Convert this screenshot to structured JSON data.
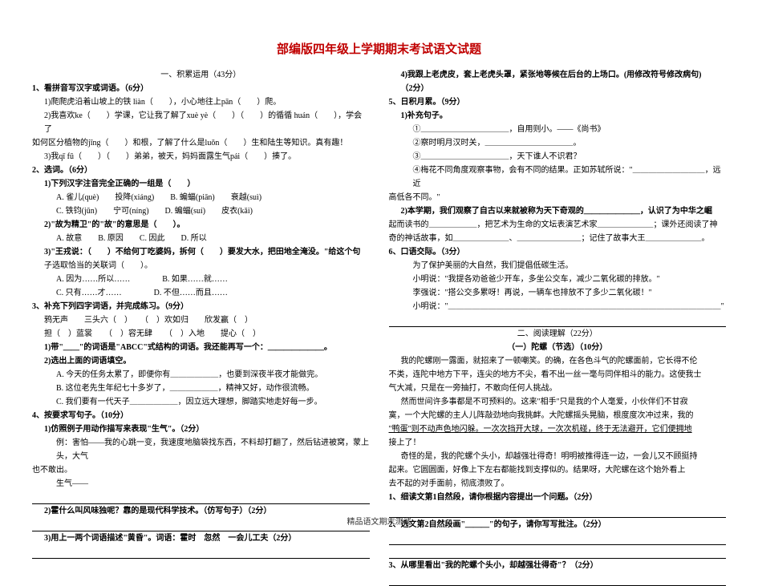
{
  "title": "部编版四年级上学期期末考试语文试题",
  "left": {
    "sectionA": "一、积累运用（43分）",
    "q1": "1、看拼音写汉字或词语。（6分）",
    "q1a": "1)爬爬虎沿着山坡上的铁 liàn（　　），小心地往上pān（　　）爬。",
    "q1b": "2)我喜欢ke（　　）学课，它让我了解了xuè yè（　　）（　　）的循循 huán（　　），学会了",
    "q1b2": "如何区分植物的jīng（　　）和根，了解了什么是luǒn（　　）生和陆生等知识。真有趣！",
    "q1c": "3)我qī fū（　　）（　　）弟弟，被天，妈妈面露生气pái（　　）揍了。",
    "q2": "2、选词。（6分）",
    "q2_1": "1)下列汉字注音完全正确的一组是（　　）",
    "q2_1a": "A. 雀儿(què)　　投降(xiáng)　　B. 蝙蝠(piān)　　衰越(suì)",
    "q2_1b": "C. 铁钧(jūn)　　宁可(níng)　　D. 蝙蝠(suí)　　皮衣(kǎi)",
    "q2_2": "2)\"故为精卫\"的\"故\"的意思是（　　）。",
    "q2_2opts": "A. 故意　　B. 原因　　C. 因此　　D. 所以",
    "q2_3": "3)\"王戎说：（　　）不给何丁吃婆妈，拆何（　　）要发大水，把田地全淹没。\"给这个句",
    "q2_3b": "子选取恰当的关联词（　　）。",
    "q2_3opts": "A. 因为……所以……　　　　B. 如果……就……",
    "q2_3opts2": "C. 只有……才……　　　　D. 不但……而且……",
    "q3": "3、补充下列四字词语，并完成练习。（9分）",
    "q3a": "鸦无声　　三头六（　）　　（　）欢如归　　欣发赢（　）",
    "q3b": "担（　）蓝裳　　（　）容无肆　　（　）入地　　提心（　）",
    "q3_1": "1)带\"＿＿\"的词语是\"ABCC\"式结构的词语。我还能再写一个：＿＿＿＿＿＿＿。",
    "q3_2": "2)选出上面的词语填空。",
    "q3_2a": "A. 今天的任务太累了，即便你有＿＿＿＿＿＿，也要到深夜半夜才能做完。",
    "q3_2b": "B. 这位老先生年纪七十多岁了，＿＿＿＿＿＿，精神又好，动作很流畅。",
    "q3_2c": "C. 我们要有一代天子＿＿＿＿＿＿，因立远大理想，脚踏实地走好每一步。",
    "q4": "4、按要求写句子。（10分）",
    "q4_1": "1)仿照例子用动作描写来表现\"生气\"。（2分）",
    "q4_1ex": "例：害怕——我的心跳一变，我速度地脑袋找东西，不料却打翻了，然后钻进被窝，蒙上头，大气",
    "q4_1ex2": "也不敢出。",
    "q4_1ans": "生气——",
    "q4_2": "2)霍什么叫风味独呢？靠的是现代科学技术。（仿写句子）（2分）",
    "q4_3": "3)用上一两个词语描述\"黄昏\"。词语：霍时　忽然　一会儿工夫（2分）"
  },
  "right": {
    "q4_4": "4)我跟上老虎皮，套上老虎头罩，紧张地等候在后台的上场口。(用修改符号修改病句)",
    "q4_4pts": "（2分）",
    "q5": "5、日积月累。（9分）",
    "q5_1": "1)补充句子。",
    "q5_1a": "①＿＿＿＿＿＿＿＿＿＿＿，自用则小。——《尚书》",
    "q5_1b": "②察时明月汉时关，＿＿＿＿＿＿＿＿＿＿＿。",
    "q5_1c": "③＿＿＿＿＿＿＿＿＿＿＿，天下谁人不识君？",
    "q5_1d": "④梅花不同角度观察事物，会有不同的结果。正如苏轼所说：\"＿＿＿＿＿＿＿＿＿，远近",
    "q5_1d2": "高低各不同。\"",
    "q5_2": "2)本学期，我们观察了自古以来就被称为天下奇观的＿＿＿＿＿＿＿，认识了为中华之崛",
    "q5_2b": "起而读书的＿＿＿＿＿＿，把艺术为生命的文坛表演艺术家＿＿＿＿＿＿＿；课外还阅读了神",
    "q5_2c": "奇的神话故事，如＿＿＿＿＿＿＿、＿＿＿＿＿＿＿＿；记住了故事大王＿＿＿＿＿＿＿。",
    "q6": "6、口语交际。（3分）",
    "q6a": "为了保护美丽的大自然，我们提倡低碳生活。",
    "q6b": "小明说：\"我提各劝爸爸少开车，多坐公交车，减少二氧化碳的排放。\"",
    "q6c": "李强说：\"搭公交多累呀！再说，一辆车也排放不了多少二氧化碳！\"",
    "q6d": "小明说：\"＿＿＿＿＿＿＿＿＿＿＿＿＿＿＿＿＿＿＿＿＿＿＿＿＿＿＿＿＿＿＿＿＿＿\"",
    "sectionB": "二、阅读理解（22分）",
    "passage": "（一）陀螺（节选）（10分）",
    "p1": "我的陀螺刚一露面，就招来了一顿嘲笑。的确，在各色斗气的陀螺面前，它长得不伦",
    "p1b": "不类，连陀中地方下平，连尖的地方不尖，看不出一丝一毫与同伴相斗的能力。这使我士",
    "p1c": "气大减，只是在一旁抽打，不敢向任何人挑战。",
    "p2": "然而世间许多事都是不可预料的。这来\"相手\"只是我的个人毫爱，小伙伴们不甘寂",
    "p2b": "寞，一个大陀螺的主人儿阵敲劲地向我挑衅。大陀螺摇头晃脑，根度度次冲过来，我的",
    "p2c": "\"鸭蛋\"则不动声色地闪躲。一次次挡开大球，一次次机碰，终于无法避开，它们便拥地",
    "p2d": "接上了！",
    "p3": "奇怪的是，我的陀螺个头小，却越强壮得奇！明明被推得连一边，一会儿又不顾挺持",
    "p3b": "起来。它圆圆面，好像上下左右都能找到支撑似的。结果呀，大陀螺在这个始外看上",
    "p3c": "去不起的对手面前，彻底溃败了。",
    "rq1": "1、细读文第1自然段，请你根据内容提出一个问题。（2分）",
    "rq2": "2、选文第2自然段画\"＿＿＿\"的句子，请你写写批注。（2分）",
    "rq3": "3、从哪里看出\"我的陀螺个头小，却越强壮得奇\"？（2分）"
  },
  "footer": "精品语文期末测试"
}
